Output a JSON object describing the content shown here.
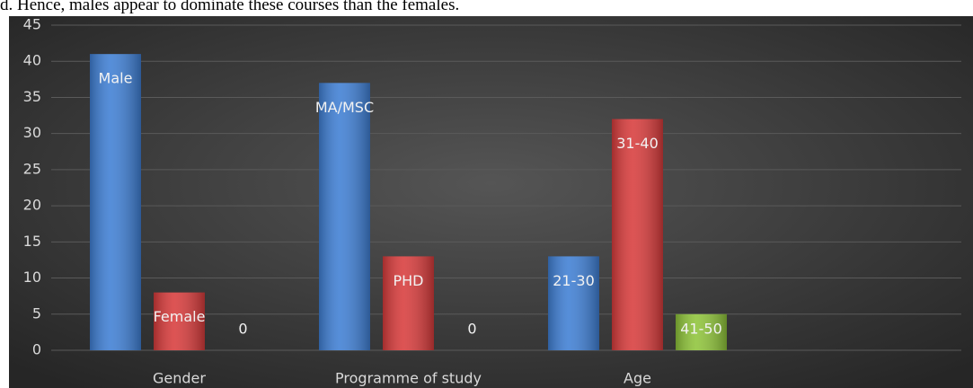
{
  "caption": "d. Hence, males appear to dominate these courses than the females.",
  "chart_data": {
    "type": "bar",
    "categories": [
      "Gender",
      "Programme of study",
      "Age"
    ],
    "series": [
      {
        "color": "#3f7fd4",
        "values": [
          41,
          37,
          13
        ],
        "labels": [
          "Male",
          "MA/MSC",
          "21-30"
        ]
      },
      {
        "color": "#d83c3c",
        "values": [
          8,
          13,
          32
        ],
        "labels": [
          "Female",
          "PHD",
          "31-40"
        ]
      },
      {
        "color": "#8fc43a",
        "values": [
          0,
          0,
          5
        ],
        "labels": [
          "0",
          "0",
          "41-50"
        ]
      }
    ],
    "ylim": [
      0,
      45
    ],
    "yticks": [
      0,
      5,
      10,
      15,
      20,
      25,
      30,
      35,
      40,
      45
    ],
    "grid": true
  }
}
